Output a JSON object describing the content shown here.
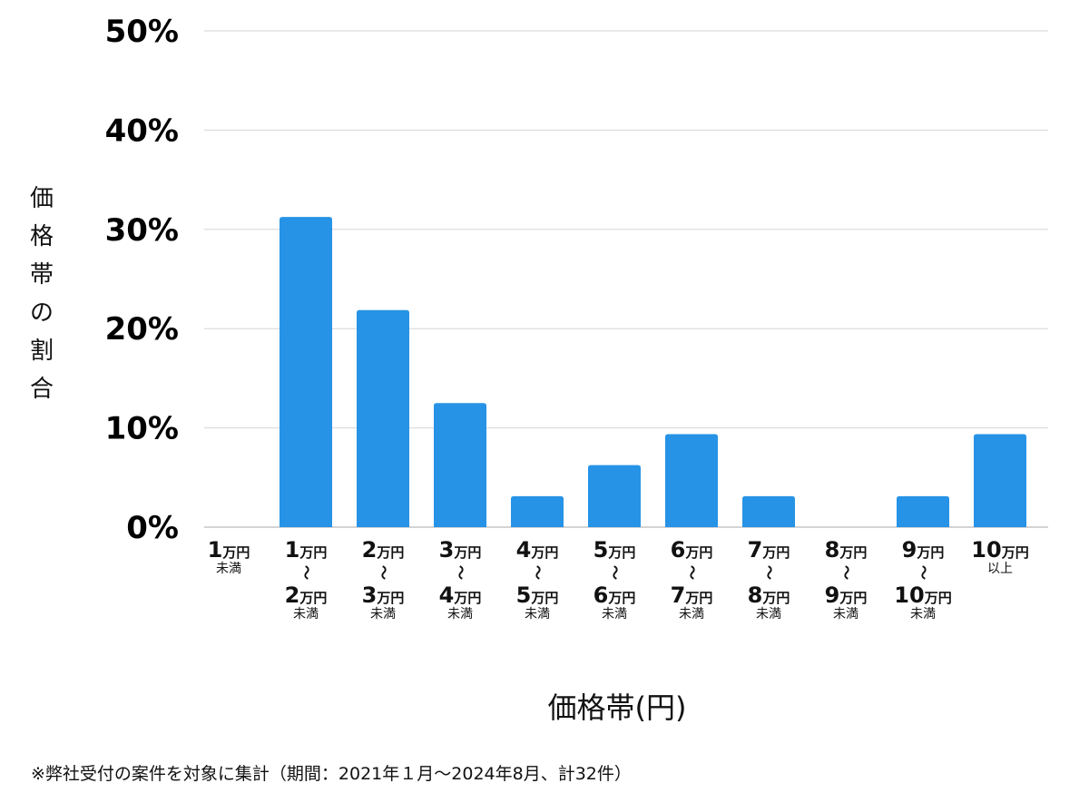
{
  "chart_data": {
    "type": "bar",
    "xlabel": "価格帯(円)",
    "ylabel": "価格帯の割合",
    "ylim": [
      0,
      50
    ],
    "yticks": [
      "0%",
      "10%",
      "20%",
      "30%",
      "40%",
      "50%"
    ],
    "grid": true,
    "bar_color": "#2693e6",
    "categories": [
      {
        "top_num": "1",
        "top_unit": "万円",
        "bottom_num": "",
        "bottom_unit": "",
        "note": "未満"
      },
      {
        "top_num": "1",
        "top_unit": "万円",
        "bottom_num": "2",
        "bottom_unit": "万円",
        "note": "未満"
      },
      {
        "top_num": "2",
        "top_unit": "万円",
        "bottom_num": "3",
        "bottom_unit": "万円",
        "note": "未満"
      },
      {
        "top_num": "3",
        "top_unit": "万円",
        "bottom_num": "4",
        "bottom_unit": "万円",
        "note": "未満"
      },
      {
        "top_num": "4",
        "top_unit": "万円",
        "bottom_num": "5",
        "bottom_unit": "万円",
        "note": "未満"
      },
      {
        "top_num": "5",
        "top_unit": "万円",
        "bottom_num": "6",
        "bottom_unit": "万円",
        "note": "未満"
      },
      {
        "top_num": "6",
        "top_unit": "万円",
        "bottom_num": "7",
        "bottom_unit": "万円",
        "note": "未満"
      },
      {
        "top_num": "7",
        "top_unit": "万円",
        "bottom_num": "8",
        "bottom_unit": "万円",
        "note": "未満"
      },
      {
        "top_num": "8",
        "top_unit": "万円",
        "bottom_num": "9",
        "bottom_unit": "万円",
        "note": "未満"
      },
      {
        "top_num": "9",
        "top_unit": "万円",
        "bottom_num": "10",
        "bottom_unit": "万円",
        "note": "未満"
      },
      {
        "top_num": "10",
        "top_unit": "万円",
        "bottom_num": "",
        "bottom_unit": "",
        "note": "以上"
      }
    ],
    "range_mark": "〜",
    "values": [
      0,
      31.25,
      21.875,
      12.5,
      3.125,
      6.25,
      9.375,
      3.125,
      0,
      3.125,
      9.375
    ]
  },
  "footnote": "※弊社受付の案件を対象に集計（期間：2021年１月〜2024年8月、計32件）"
}
